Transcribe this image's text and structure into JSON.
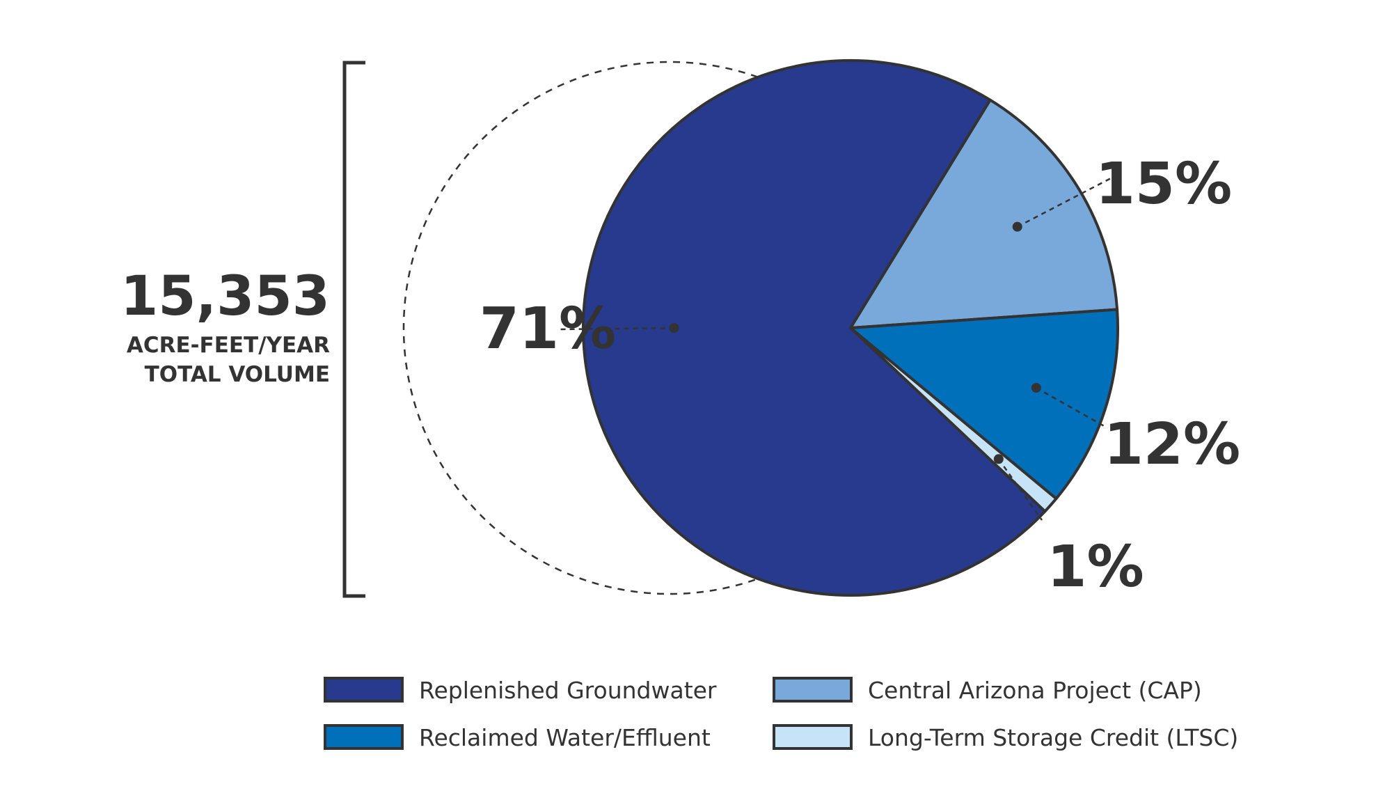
{
  "total": {
    "value": "15,353",
    "unit_line": "ACRE-FEET/YEAR",
    "label_line": "TOTAL VOLUME"
  },
  "chart_data": {
    "type": "pie",
    "title": "",
    "slices": [
      {
        "name": "Replenished Groundwater",
        "percent": 71,
        "label": "71%",
        "color": "#273a8e"
      },
      {
        "name": "Central Arizona Project (CAP)",
        "percent": 15,
        "label": "15%",
        "color": "#78a9da"
      },
      {
        "name": "Reclaimed Water/Effluent",
        "percent": 12,
        "label": "12%",
        "color": "#0070bb"
      },
      {
        "name": "Long-Term Storage Credit (LTSC)",
        "percent": 1,
        "label": "1%",
        "color": "#c6e3f7"
      }
    ],
    "legend": [
      {
        "label": "Replenished Groundwater",
        "color": "#273a8e"
      },
      {
        "label": "Central Arizona Project (CAP)",
        "color": "#78a9da"
      },
      {
        "label": "Reclaimed Water/Effluent",
        "color": "#0070bb"
      },
      {
        "label": "Long-Term Storage Credit (LTSC)",
        "color": "#c6e3f7"
      }
    ],
    "legend_position": "bottom"
  }
}
